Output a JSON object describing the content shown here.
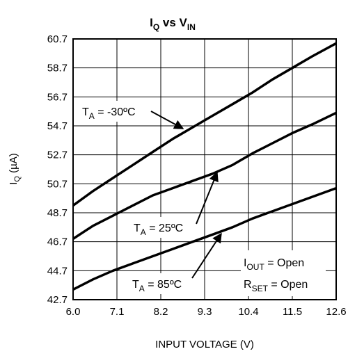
{
  "chart_data": {
    "type": "line",
    "title": {
      "main": "I",
      "main_sub": "Q",
      "mid": " vs V",
      "mid_sub": "IN"
    },
    "xlabel": "INPUT VOLTAGE (V)",
    "ylabel": {
      "main": "I",
      "sub": "Q",
      "unit": " (µA)"
    },
    "xlim": [
      6.0,
      12.6
    ],
    "ylim": [
      42.7,
      60.7
    ],
    "x_ticks": [
      "6.0",
      "7.1",
      "8.2",
      "9.3",
      "10.4",
      "11.5",
      "12.6"
    ],
    "y_ticks": [
      "42.7",
      "44.7",
      "46.7",
      "48.7",
      "50.7",
      "52.7",
      "54.7",
      "56.7",
      "58.7",
      "60.7"
    ],
    "grid": true,
    "series": [
      {
        "label": {
          "main": "T",
          "sub": "A",
          "rest": " = -30ºC"
        },
        "x": [
          6.0,
          6.5,
          7.0,
          7.5,
          8.0,
          8.5,
          9.0,
          9.5,
          10.0,
          10.5,
          11.0,
          11.5,
          12.0,
          12.6
        ],
        "y": [
          49.2,
          50.2,
          51.1,
          52.0,
          52.9,
          53.8,
          54.6,
          55.4,
          56.2,
          57.0,
          57.9,
          58.7,
          59.5,
          60.4
        ]
      },
      {
        "label": {
          "main": "T",
          "sub": "A",
          "rest": " = 25ºC"
        },
        "x": [
          6.0,
          6.5,
          7.0,
          7.5,
          8.0,
          8.5,
          9.0,
          9.5,
          10.0,
          10.5,
          11.0,
          11.5,
          12.0,
          12.6
        ],
        "y": [
          46.9,
          47.8,
          48.5,
          49.2,
          49.9,
          50.4,
          50.9,
          51.4,
          52.0,
          52.8,
          53.5,
          54.2,
          54.8,
          55.6
        ]
      },
      {
        "label": {
          "main": "T",
          "sub": "A",
          "rest": " = 85ºC"
        },
        "x": [
          6.0,
          6.5,
          7.0,
          7.5,
          8.0,
          8.5,
          9.0,
          9.5,
          10.0,
          10.5,
          11.0,
          11.5,
          12.0,
          12.6
        ],
        "y": [
          43.4,
          44.1,
          44.7,
          45.2,
          45.7,
          46.2,
          46.7,
          47.2,
          47.7,
          48.3,
          48.8,
          49.3,
          49.8,
          50.4
        ]
      }
    ],
    "conditions": [
      {
        "main": "I",
        "sub": "OUT",
        "rest": " = Open"
      },
      {
        "main": "R",
        "sub": "SET",
        "rest": " = Open"
      }
    ]
  }
}
